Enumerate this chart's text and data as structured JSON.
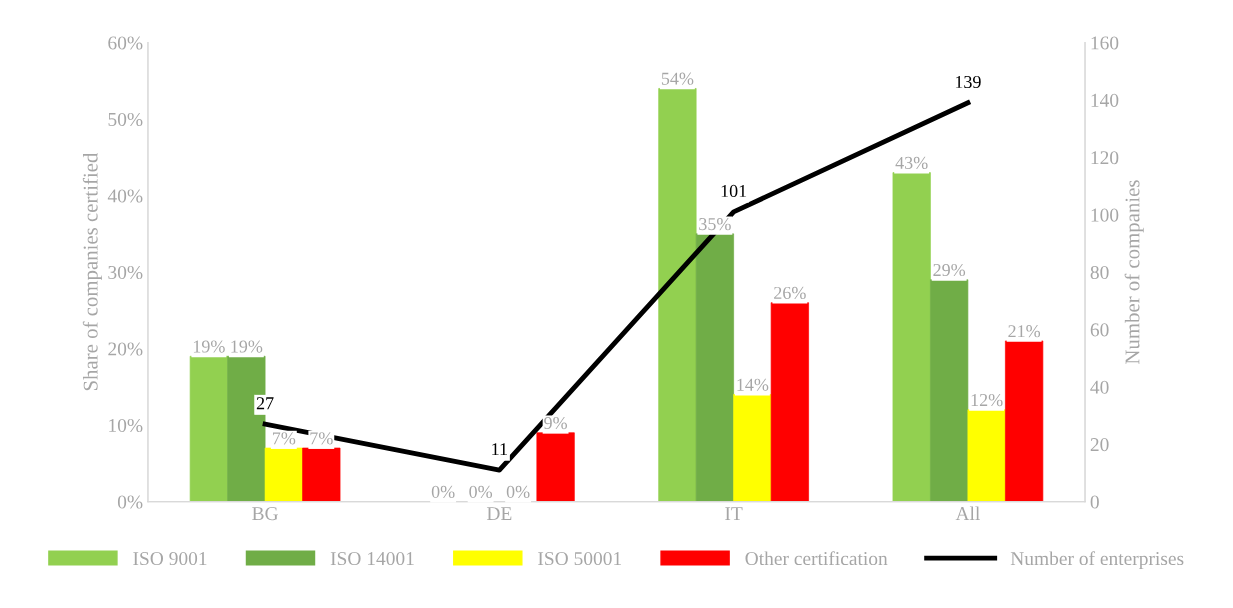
{
  "chart_data": {
    "type": "bar",
    "categories": [
      "BG",
      "DE",
      "IT",
      "All"
    ],
    "ylabel": "Share of companies certified",
    "y2label": "Number of companies",
    "ylim": [
      0,
      60
    ],
    "yticks": [
      {
        "value": 0,
        "label": "0%"
      },
      {
        "value": 10,
        "label": "10%"
      },
      {
        "value": 20,
        "label": "20%"
      },
      {
        "value": 30,
        "label": "30%"
      },
      {
        "value": 40,
        "label": "40%"
      },
      {
        "value": 50,
        "label": "50%"
      },
      {
        "value": 60,
        "label": "60%"
      }
    ],
    "y2lim": [
      0,
      160
    ],
    "y2ticks": [
      0,
      20,
      40,
      60,
      80,
      100,
      120,
      140,
      160
    ],
    "series": [
      {
        "name": "ISO 9001",
        "color": "#92d050",
        "values": [
          19,
          0,
          54,
          43
        ],
        "value_labels": [
          "19%",
          "0%",
          "54%",
          "43%"
        ]
      },
      {
        "name": "ISO 14001",
        "color": "#70ad47",
        "values": [
          19,
          0,
          35,
          29
        ],
        "value_labels": [
          "19%",
          "0%",
          "35%",
          "29%"
        ]
      },
      {
        "name": "ISO 50001",
        "color": "#ffff00",
        "values": [
          7,
          0,
          14,
          12
        ],
        "value_labels": [
          "7%",
          "0%",
          "14%",
          "12%"
        ]
      },
      {
        "name": "Other certification",
        "color": "#ff0000",
        "values": [
          7,
          9,
          26,
          21
        ],
        "value_labels": [
          "7%",
          "9%",
          "26%",
          "21%"
        ]
      },
      {
        "name": "Number of enterprises",
        "type": "line",
        "axis": "y2",
        "color": "#000000",
        "values": [
          27,
          11,
          101,
          139
        ],
        "value_labels": [
          "27",
          "11",
          "101",
          "139"
        ]
      }
    ],
    "legend": "bottom",
    "grid": false,
    "marker": "none",
    "line_style": "solid"
  }
}
